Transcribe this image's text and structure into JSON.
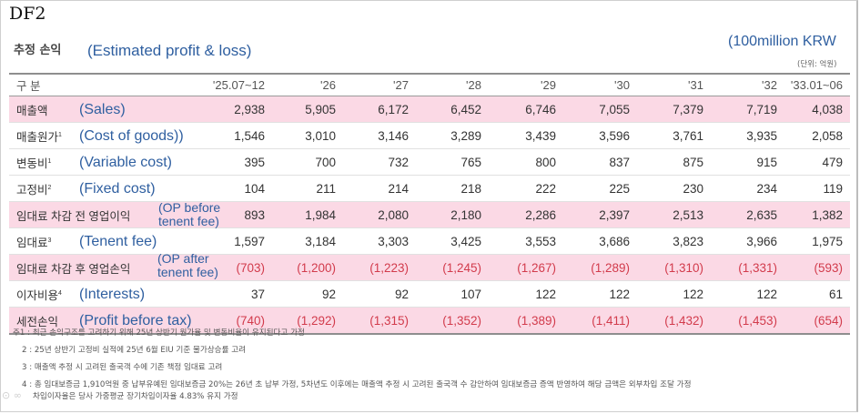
{
  "doc_tag": "DF2",
  "title_ko": "추정 손익",
  "title_en": "(Estimated profit & loss)",
  "unit_en": "(100million KRW",
  "unit_ko": "(단위: 억원)",
  "header": [
    "구 분",
    "'25.07~12",
    "'26",
    "'27",
    "'28",
    "'29",
    "'30",
    "'31",
    "'32",
    "'33.01~06"
  ],
  "rows": [
    {
      "label_ko": "매출액",
      "sup": "",
      "label_en": "(Sales)",
      "values": [
        "2,938",
        "5,905",
        "6,172",
        "6,452",
        "6,746",
        "7,055",
        "7,379",
        "7,719",
        "4,038"
      ]
    },
    {
      "label_ko": "매출원가",
      "sup": "1",
      "label_en": "(Cost of goods))",
      "values": [
        "1,546",
        "3,010",
        "3,146",
        "3,289",
        "3,439",
        "3,596",
        "3,761",
        "3,935",
        "2,058"
      ]
    },
    {
      "label_ko": "변동비",
      "sup": "1",
      "label_en": "(Variable cost)",
      "values": [
        "395",
        "700",
        "732",
        "765",
        "800",
        "837",
        "875",
        "915",
        "479"
      ]
    },
    {
      "label_ko": "고정비",
      "sup": "2",
      "label_en": "(Fixed cost)",
      "values": [
        "104",
        "211",
        "214",
        "218",
        "222",
        "225",
        "230",
        "234",
        "119"
      ]
    },
    {
      "label_ko": "임대료 차감 전 영업이익",
      "sup": "",
      "label_en": "(OP before tenent fee)",
      "values": [
        "893",
        "1,984",
        "2,080",
        "2,180",
        "2,286",
        "2,397",
        "2,513",
        "2,635",
        "1,382"
      ]
    },
    {
      "label_ko": "임대료",
      "sup": "3",
      "label_en": "(Tenent fee)",
      "values": [
        "1,597",
        "3,184",
        "3,303",
        "3,425",
        "3,553",
        "3,686",
        "3,823",
        "3,966",
        "1,975"
      ]
    },
    {
      "label_ko": "임대료 차감 후 영업손익",
      "sup": "",
      "label_en": "(OP after tenent fee)",
      "values": [
        "(703)",
        "(1,200)",
        "(1,223)",
        "(1,245)",
        "(1,267)",
        "(1,289)",
        "(1,310)",
        "(1,331)",
        "(593)"
      ]
    },
    {
      "label_ko": "이자비용",
      "sup": "4",
      "label_en": "(Interests)",
      "values": [
        "37",
        "92",
        "92",
        "107",
        "122",
        "122",
        "122",
        "122",
        "61"
      ]
    },
    {
      "label_ko": "세전손익",
      "sup": "",
      "label_en": "(Profit before tax)",
      "values": [
        "(740)",
        "(1,292)",
        "(1,315)",
        "(1,352)",
        "(1,389)",
        "(1,411)",
        "(1,432)",
        "(1,453)",
        "(654)"
      ]
    }
  ],
  "notes": [
    "주1 : 최근 손익구조를 고려하기 위해 25년 상반기 원가율 및 변동비율이 유지된다고 가정",
    "2 : 25년 상반기 고정비 실적에 25년 6월 EIU 기준 물가상승률 고려",
    "3 : 매출액 추정 시 고려된 출국객 수에 기존 책정 임대료 고려",
    "4 : 총 임대보증금 1,910억원 중 납부유예된 임대보증금 20%는 26년 초 납부 가정, 5차년도 이후에는 매출액 추정 시 고려된 출국객 수 감안하여 임대보증금 증액 반영하여 해당 금액은 외부차입 조달 가정",
    "차입이자율은 당사 가중평균 장기차입이자율 4.83% 유지 가정"
  ],
  "colors": {
    "pink_row": "#fbd9e5",
    "annotation_blue": "#2f5fa0",
    "negative_red": "#d23b4c"
  }
}
